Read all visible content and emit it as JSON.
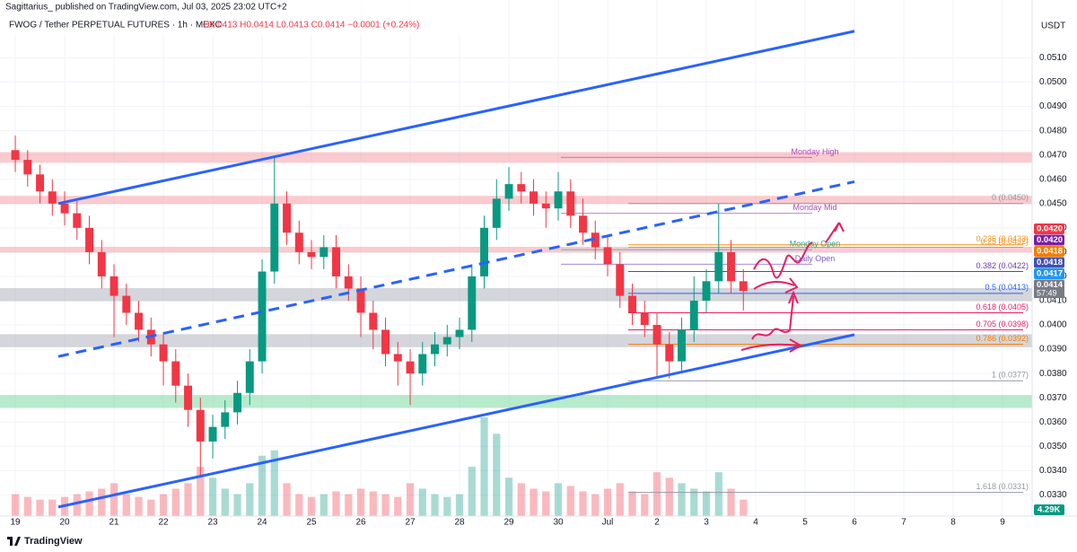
{
  "header": {
    "publisher": "Sagittarius_ published on TradingView.com, Jul 03, 2025 23:02 UTC+2",
    "footer": "TradingView"
  },
  "chart_data": {
    "type": "candlestick",
    "title": "FWOG / Tether PERPETUAL FUTURES · 1h · MEXC",
    "subtitle": "O0.0413 H0.0414 L0.0413 C0.0414 −0.0001 (+0.24%)",
    "currency": "USDT",
    "up_color": "#089981",
    "down_color": "#f23645",
    "grid": true,
    "xlim": [
      -0.31,
      20.6
    ],
    "ylim": [
      0.0322,
      0.0532
    ],
    "xticks": [
      {
        "value": 0,
        "label": "19"
      },
      {
        "value": 1,
        "label": "20"
      },
      {
        "value": 2,
        "label": "21"
      },
      {
        "value": 3,
        "label": "22"
      },
      {
        "value": 4,
        "label": "23"
      },
      {
        "value": 5,
        "label": "24"
      },
      {
        "value": 6,
        "label": "25"
      },
      {
        "value": 7,
        "label": "26"
      },
      {
        "value": 8,
        "label": "27"
      },
      {
        "value": 9,
        "label": "28"
      },
      {
        "value": 10,
        "label": "29"
      },
      {
        "value": 11,
        "label": "30"
      },
      {
        "value": 12,
        "label": "Jul"
      },
      {
        "value": 13,
        "label": "2"
      },
      {
        "value": 14,
        "label": "3"
      },
      {
        "value": 15,
        "label": "4"
      },
      {
        "value": 16,
        "label": "5"
      },
      {
        "value": 17,
        "label": "6"
      },
      {
        "value": 18,
        "label": "7"
      },
      {
        "value": 19,
        "label": "8"
      },
      {
        "value": 20,
        "label": "9"
      }
    ],
    "yticks": [
      {
        "value": 0.033,
        "label": "0.0330"
      },
      {
        "value": 0.034,
        "label": "0.0340"
      },
      {
        "value": 0.035,
        "label": "0.0350"
      },
      {
        "value": 0.036,
        "label": "0.0360"
      },
      {
        "value": 0.037,
        "label": "0.0370"
      },
      {
        "value": 0.038,
        "label": "0.0380"
      },
      {
        "value": 0.039,
        "label": "0.0390"
      },
      {
        "value": 0.04,
        "label": "0.0400"
      },
      {
        "value": 0.041,
        "label": "0.0410"
      },
      {
        "value": 0.042,
        "label": "0.0420"
      },
      {
        "value": 0.043,
        "label": "0.0430"
      },
      {
        "value": 0.044,
        "label": "0.0440"
      },
      {
        "value": 0.045,
        "label": "0.0450"
      },
      {
        "value": 0.046,
        "label": "0.0460"
      },
      {
        "value": 0.047,
        "label": "0.0470"
      },
      {
        "value": 0.048,
        "label": "0.0480"
      },
      {
        "value": 0.049,
        "label": "0.0490"
      },
      {
        "value": 0.05,
        "label": "0.0500"
      },
      {
        "value": 0.051,
        "label": "0.0510"
      }
    ],
    "x": [
      0,
      0.25,
      0.5,
      0.75,
      1,
      1.25,
      1.5,
      1.75,
      2,
      2.25,
      2.5,
      2.75,
      3,
      3.25,
      3.5,
      3.75,
      4,
      4.25,
      4.5,
      4.75,
      5,
      5.25,
      5.5,
      5.75,
      6,
      6.25,
      6.5,
      6.75,
      7,
      7.25,
      7.5,
      7.75,
      8,
      8.25,
      8.5,
      8.75,
      9,
      9.25,
      9.5,
      9.75,
      10,
      10.25,
      10.5,
      10.75,
      11,
      11.25,
      11.5,
      11.75,
      12,
      12.25,
      12.5,
      12.75,
      13,
      13.25,
      13.5,
      13.75,
      14,
      14.25,
      14.5,
      14.75
    ],
    "open": [
      0.0472,
      0.0468,
      0.0462,
      0.0455,
      0.045,
      0.0446,
      0.044,
      0.043,
      0.042,
      0.0412,
      0.0405,
      0.0398,
      0.0392,
      0.0385,
      0.0375,
      0.0365,
      0.0352,
      0.0358,
      0.0364,
      0.0372,
      0.0385,
      0.0422,
      0.045,
      0.0438,
      0.043,
      0.0428,
      0.0432,
      0.042,
      0.0415,
      0.0405,
      0.0398,
      0.0388,
      0.0385,
      0.038,
      0.0388,
      0.0392,
      0.0395,
      0.0398,
      0.042,
      0.044,
      0.0452,
      0.0458,
      0.0455,
      0.045,
      0.0448,
      0.0455,
      0.0445,
      0.0438,
      0.0432,
      0.0425,
      0.0412,
      0.0405,
      0.04,
      0.0392,
      0.0385,
      0.0398,
      0.041,
      0.0418,
      0.043,
      0.0418
    ],
    "high": [
      0.0478,
      0.0472,
      0.0466,
      0.046,
      0.0455,
      0.0451,
      0.0445,
      0.0435,
      0.0425,
      0.0417,
      0.041,
      0.0403,
      0.0397,
      0.039,
      0.038,
      0.037,
      0.0363,
      0.0369,
      0.0377,
      0.039,
      0.0427,
      0.0469,
      0.0455,
      0.0443,
      0.0435,
      0.0437,
      0.0437,
      0.0425,
      0.042,
      0.041,
      0.0403,
      0.0393,
      0.039,
      0.0393,
      0.0397,
      0.04,
      0.0403,
      0.0425,
      0.0445,
      0.046,
      0.0465,
      0.0463,
      0.046,
      0.0455,
      0.0463,
      0.046,
      0.0452,
      0.0443,
      0.0437,
      0.043,
      0.0417,
      0.041,
      0.0405,
      0.0397,
      0.0403,
      0.042,
      0.0423,
      0.045,
      0.0435,
      0.0423
    ],
    "low": [
      0.0463,
      0.0457,
      0.045,
      0.0445,
      0.0441,
      0.0435,
      0.0425,
      0.0415,
      0.0395,
      0.04,
      0.0393,
      0.0387,
      0.0375,
      0.0368,
      0.0358,
      0.0337,
      0.0345,
      0.0353,
      0.0359,
      0.0367,
      0.038,
      0.0417,
      0.0433,
      0.0425,
      0.0423,
      0.0423,
      0.0415,
      0.041,
      0.0395,
      0.039,
      0.0383,
      0.0375,
      0.0367,
      0.0375,
      0.0383,
      0.0387,
      0.039,
      0.0393,
      0.0415,
      0.0435,
      0.0447,
      0.045,
      0.0445,
      0.044,
      0.0443,
      0.044,
      0.0433,
      0.0427,
      0.042,
      0.0407,
      0.04,
      0.0395,
      0.0378,
      0.0378,
      0.038,
      0.0393,
      0.0405,
      0.0413,
      0.0413,
      0.0406
    ],
    "close": [
      0.0468,
      0.0462,
      0.0455,
      0.045,
      0.0446,
      0.044,
      0.043,
      0.042,
      0.0412,
      0.0405,
      0.0398,
      0.0392,
      0.0385,
      0.0375,
      0.0365,
      0.0352,
      0.0358,
      0.0364,
      0.0372,
      0.0385,
      0.0422,
      0.045,
      0.0438,
      0.043,
      0.0428,
      0.0432,
      0.042,
      0.0415,
      0.0405,
      0.0398,
      0.0388,
      0.0385,
      0.038,
      0.0388,
      0.0392,
      0.0395,
      0.0398,
      0.042,
      0.044,
      0.0452,
      0.0458,
      0.0455,
      0.045,
      0.0448,
      0.0455,
      0.0445,
      0.0438,
      0.0432,
      0.0425,
      0.0412,
      0.0405,
      0.04,
      0.0392,
      0.0385,
      0.0398,
      0.041,
      0.0418,
      0.043,
      0.0418,
      0.0414
    ],
    "volume": [
      40,
      35,
      30,
      30,
      35,
      40,
      45,
      50,
      60,
      40,
      35,
      30,
      40,
      50,
      60,
      90,
      70,
      50,
      40,
      60,
      110,
      120,
      60,
      40,
      35,
      40,
      45,
      40,
      50,
      45,
      40,
      35,
      60,
      50,
      40,
      35,
      40,
      90,
      180,
      150,
      70,
      60,
      50,
      45,
      60,
      55,
      45,
      40,
      50,
      60,
      45,
      40,
      80,
      70,
      60,
      50,
      45,
      80,
      50,
      30
    ],
    "volume_label": "4.29K",
    "zones": [
      {
        "from": 0.0467,
        "to": 0.0471,
        "color": "#f7a1a8"
      },
      {
        "from": 0.045,
        "to": 0.0453,
        "color": "#f7a1a8"
      },
      {
        "from": 0.043,
        "to": 0.0432,
        "color": "#f7a1a8"
      },
      {
        "from": 0.041,
        "to": 0.0415,
        "color": "#b2b5be"
      },
      {
        "from": 0.0391,
        "to": 0.0396,
        "color": "#b2b5be"
      },
      {
        "from": 0.0366,
        "to": 0.0371,
        "color": "#7fdca4"
      }
    ],
    "trendlines": [
      {
        "x": [
          0.87,
          17.0
        ],
        "y": [
          0.045,
          0.0521
        ],
        "color": "#2962ff",
        "dashed": false
      },
      {
        "x": [
          0.87,
          17.0
        ],
        "y": [
          0.0325,
          0.0396
        ],
        "color": "#2962ff",
        "dashed": false
      },
      {
        "x": [
          0.87,
          17.0
        ],
        "y": [
          0.0387,
          0.0459
        ],
        "color": "#2962ff",
        "dashed": true
      }
    ],
    "fib": [
      {
        "label": "0 (0.0450)",
        "value": 0.045,
        "color": "#9598a1"
      },
      {
        "label": "0.236 (0.0433)",
        "value": 0.0433,
        "color": "#f7931a"
      },
      {
        "label": "0.25 (0.0432)",
        "value": 0.0432,
        "color": "#f7931a"
      },
      {
        "label": "0.382 (0.0422)",
        "value": 0.0422,
        "color": "#673ab7"
      },
      {
        "label": "0.5 (0.0413)",
        "value": 0.0413,
        "color": "#2962ff"
      },
      {
        "label": "0.618 (0.0405)",
        "value": 0.0405,
        "color": "#e91e63"
      },
      {
        "label": "0.705 (0.0398)",
        "value": 0.0398,
        "color": "#e91e63"
      },
      {
        "label": "0.786 (0.0392)",
        "value": 0.0392,
        "color": "#f57c00"
      },
      {
        "label": "1 (0.0377)",
        "value": 0.0377,
        "color": "#9598a1"
      },
      {
        "label": "1.618 (0.0331)",
        "value": 0.0331,
        "color": "#9598a1"
      }
    ],
    "levels": [
      {
        "label": "Monday High",
        "value": 0.0469,
        "color": "#ab47bc"
      },
      {
        "label": "Monday Mid",
        "value": 0.0446,
        "color": "#ab47bc"
      },
      {
        "label": "Monday Open",
        "value": 0.0431,
        "color": "#26a69a"
      },
      {
        "label": "Daily Open",
        "value": 0.0425,
        "color": "#7e57c2"
      }
    ],
    "badges": [
      {
        "label": "0.0420",
        "value": 0.042,
        "color": "#f23645"
      },
      {
        "label": "0.0420",
        "value": 0.042,
        "color": "#7b1fa2"
      },
      {
        "label": "0.0418",
        "value": 0.0418,
        "color": "#f57c00"
      },
      {
        "label": "0.0418",
        "value": 0.0418,
        "color": "#3f51b5"
      },
      {
        "label": "0.0417",
        "value": 0.0417,
        "color": "#2196f3"
      },
      {
        "label": "0.0414",
        "value": 0.0414,
        "color": "#787b86"
      }
    ],
    "countdown": "57:49"
  }
}
